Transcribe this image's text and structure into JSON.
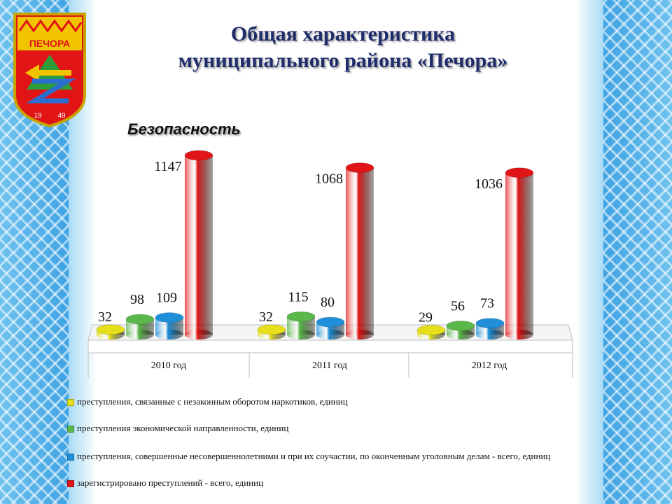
{
  "title_line1": "Общая характеристика",
  "title_line2": "муниципального района «Печора»",
  "emblem": {
    "name": "ПЕЧОРА",
    "year_left": "19",
    "year_right": "49"
  },
  "colors": {
    "yellow": "#e6e01a",
    "green": "#5ab84a",
    "blue": "#1e8fd8",
    "red": "#e11515"
  },
  "chart_data": {
    "type": "bar",
    "title": "Безопасность",
    "categories": [
      "2010 год",
      "2011 год",
      "2012 год"
    ],
    "series": [
      {
        "name": "преступления, связанные с незаконным оборотом наркотиков, единиц",
        "values": [
          32,
          32,
          29
        ],
        "color": "#e6e01a"
      },
      {
        "name": "преступления экономической направленности, единиц",
        "values": [
          98,
          115,
          56
        ],
        "color": "#5ab84a"
      },
      {
        "name": "преступления, совершенные несовершеннолетними и при их соучастии, по оконченным уголовным делам - всего, единиц",
        "values": [
          109,
          80,
          73
        ],
        "color": "#1e8fd8"
      },
      {
        "name": "зарегистрировано преступлений - всего, единиц",
        "values": [
          1147,
          1068,
          1036
        ],
        "color": "#e11515"
      }
    ],
    "legend_position": "bottom",
    "grid": false
  }
}
